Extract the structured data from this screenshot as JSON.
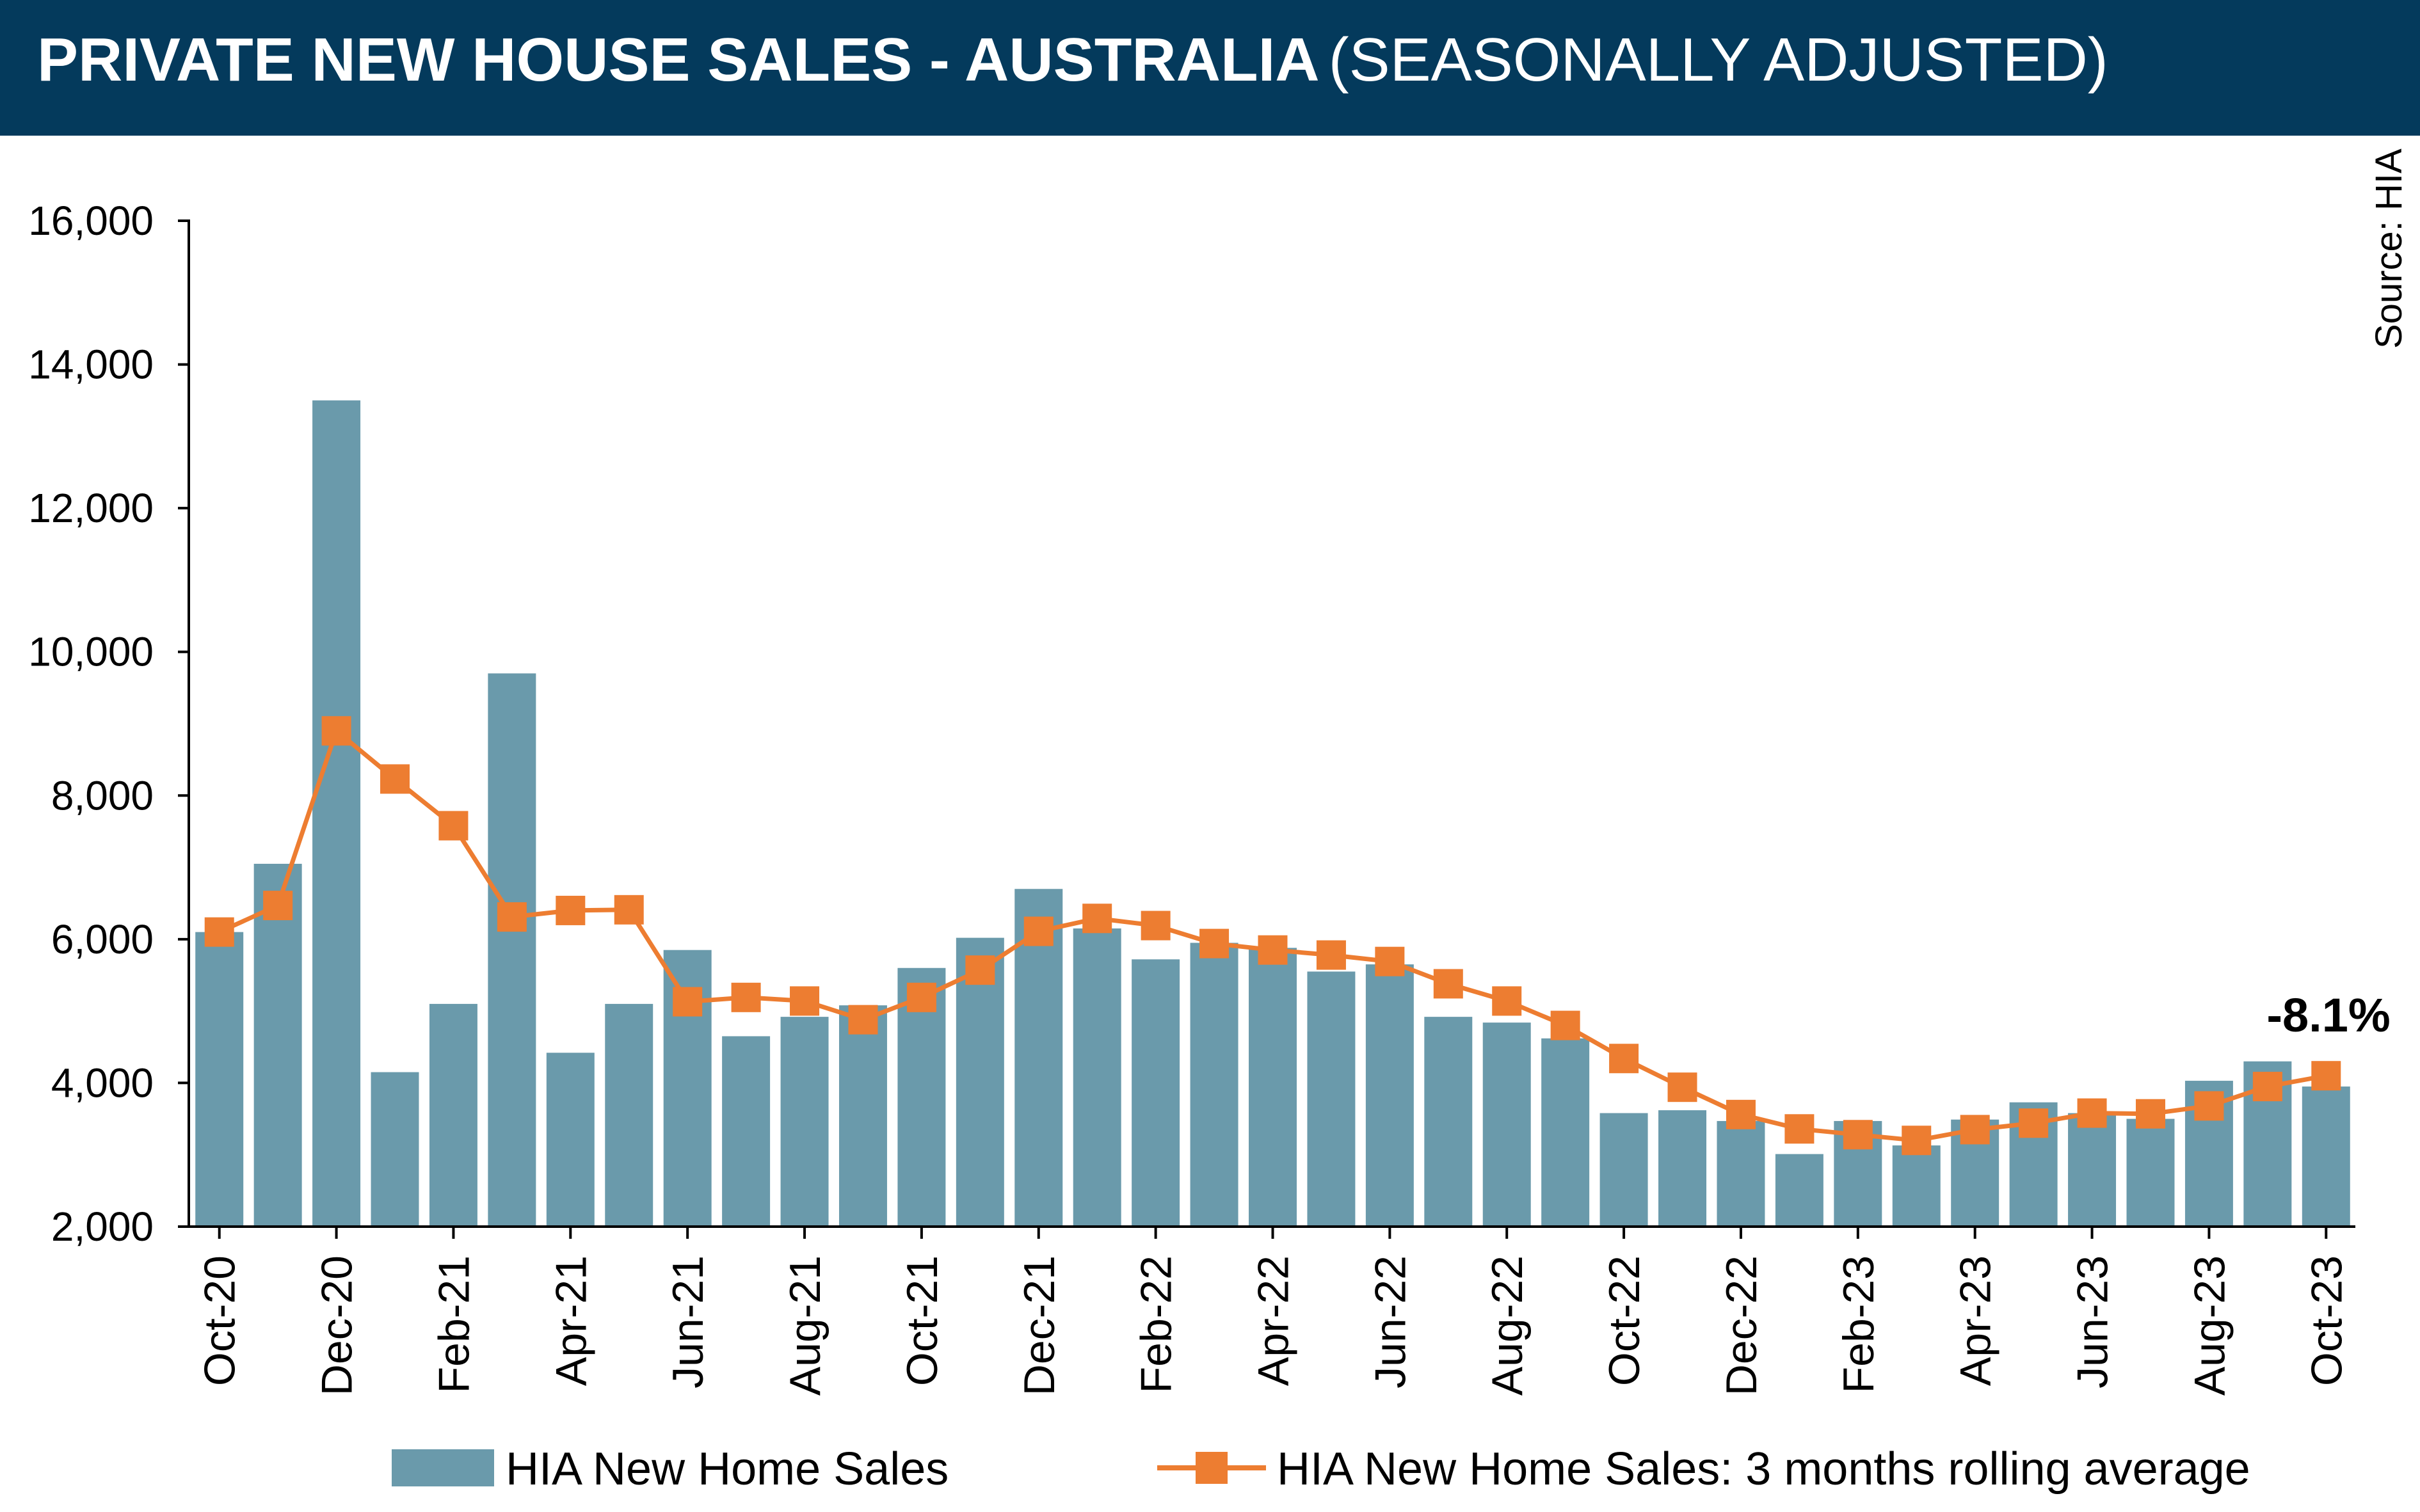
{
  "title": {
    "main": "PRIVATE NEW HOUSE SALES -  AUSTRALIA",
    "sub": "(SEASONALLY ADJUSTED)"
  },
  "source": "Source: HIA",
  "annotation": "-8.1%",
  "colors": {
    "header_bg": "#043a5c",
    "bar": "#6a9aab",
    "line": "#ed7d31"
  },
  "chart_data": {
    "type": "bar",
    "title": "PRIVATE NEW HOUSE SALES -  AUSTRALIA (SEASONALLY ADJUSTED)",
    "ylim": [
      2000,
      16000
    ],
    "y_ticks": [
      "2,000",
      "4,000",
      "6,000",
      "8,000",
      "10,000",
      "12,000",
      "14,000",
      "16,000"
    ],
    "y_tick_values": [
      2000,
      4000,
      6000,
      8000,
      10000,
      12000,
      14000,
      16000
    ],
    "categories": [
      "Oct-20",
      "Nov-20",
      "Dec-20",
      "Jan-21",
      "Feb-21",
      "Mar-21",
      "Apr-21",
      "May-21",
      "Jun-21",
      "Jul-21",
      "Aug-21",
      "Sep-21",
      "Oct-21",
      "Nov-21",
      "Dec-21",
      "Jan-22",
      "Feb-22",
      "Mar-22",
      "Apr-22",
      "May-22",
      "Jun-22",
      "Jul-22",
      "Aug-22",
      "Sep-22",
      "Oct-22",
      "Nov-22",
      "Dec-22",
      "Jan-23",
      "Feb-23",
      "Mar-23",
      "Apr-23",
      "May-23",
      "Jun-23",
      "Jul-23",
      "Aug-23",
      "Sep-23",
      "Oct-23"
    ],
    "x_tick_labels": [
      "Oct-20",
      "",
      "Dec-20",
      "",
      "Feb-21",
      "",
      "Apr-21",
      "",
      "Jun-21",
      "",
      "Aug-21",
      "",
      "Oct-21",
      "",
      "Dec-21",
      "",
      "Feb-22",
      "",
      "Apr-22",
      "",
      "Jun-22",
      "",
      "Aug-22",
      "",
      "Oct-22",
      "",
      "Dec-22",
      "",
      "Feb-23",
      "",
      "Apr-23",
      "",
      "Jun-23",
      "",
      "Aug-23",
      "",
      "Oct-23"
    ],
    "series": [
      {
        "name": "HIA New Home Sales",
        "type": "bar",
        "values": [
          6100,
          7050,
          13500,
          4150,
          5100,
          9700,
          4420,
          5100,
          5850,
          4650,
          4920,
          5080,
          5600,
          6020,
          6700,
          6150,
          5720,
          5950,
          5880,
          5550,
          5650,
          4920,
          4840,
          4620,
          3580,
          3620,
          3470,
          3010,
          3470,
          3130,
          3490,
          3730,
          3580,
          3500,
          4030,
          4300,
          3950
        ]
      },
      {
        "name": "HIA New Home Sales: 3 months rolling average",
        "type": "line",
        "values": [
          6100,
          6470,
          8900,
          8230,
          7580,
          6310,
          6400,
          6410,
          5130,
          5190,
          5140,
          4880,
          5190,
          5570,
          6110,
          6290,
          6190,
          5940,
          5850,
          5780,
          5690,
          5380,
          5140,
          4800,
          4340,
          3940,
          3560,
          3360,
          3280,
          3200,
          3350,
          3440,
          3580,
          3570,
          3680,
          3950,
          4100
        ]
      }
    ],
    "legend_position": "bottom",
    "grid": false
  }
}
